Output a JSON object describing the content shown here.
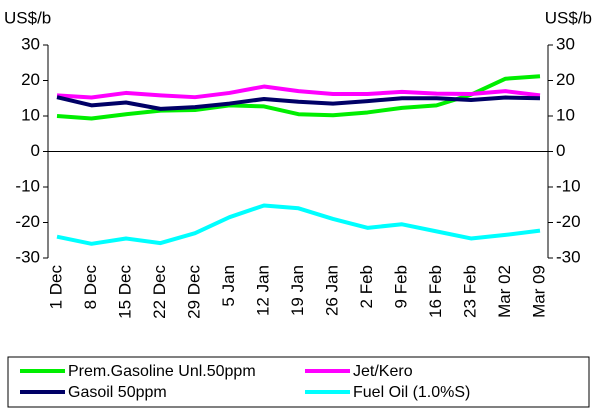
{
  "chart_data": {
    "type": "line",
    "y_label": "US$/b",
    "y2_label": "US$/b",
    "categories": [
      "1 Dec",
      "8 Dec",
      "15 Dec",
      "22 Dec",
      "29 Dec",
      "5 Jan",
      "12 Jan",
      "19 Jan",
      "26 Jan",
      "2 Feb",
      "9 Feb",
      "16 Feb",
      "23 Feb",
      "Mar 02",
      "Mar 09"
    ],
    "series": [
      {
        "name": "Prem.Gasoline Unl.50ppm",
        "color": "#00ee00",
        "values": [
          10,
          9.3,
          10.5,
          11.5,
          11.7,
          13,
          12.7,
          10.5,
          10.2,
          11,
          12.3,
          13,
          16,
          20.5,
          21.2
        ]
      },
      {
        "name": "Jet/Kero",
        "color": "#ff00ff",
        "values": [
          15.8,
          15.2,
          16.5,
          15.8,
          15.3,
          16.5,
          18.3,
          17,
          16.2,
          16.2,
          16.8,
          16.3,
          16.2,
          17,
          15.8
        ]
      },
      {
        "name": "Gasoil 50ppm",
        "color": "#000066",
        "values": [
          15.3,
          13,
          13.8,
          12,
          12.5,
          13.5,
          14.8,
          14,
          13.5,
          14.2,
          15,
          15,
          14.5,
          15.2,
          15
        ]
      },
      {
        "name": "Fuel Oil (1.0%S)",
        "color": "#00ffff",
        "values": [
          -24,
          -26,
          -24.5,
          -25.8,
          -23,
          -18.5,
          -15.2,
          -16,
          -19,
          -21.5,
          -20.5,
          -22.5,
          -24.5,
          -23.5,
          -22.3
        ]
      }
    ],
    "ylim": [
      -30,
      30
    ],
    "yticks": [
      30,
      20,
      10,
      0,
      -10,
      -20,
      -30
    ],
    "y2lim": [
      -30,
      30
    ],
    "y2ticks": [
      30,
      20,
      10,
      0,
      -10,
      -20,
      -30
    ],
    "grid": false
  }
}
